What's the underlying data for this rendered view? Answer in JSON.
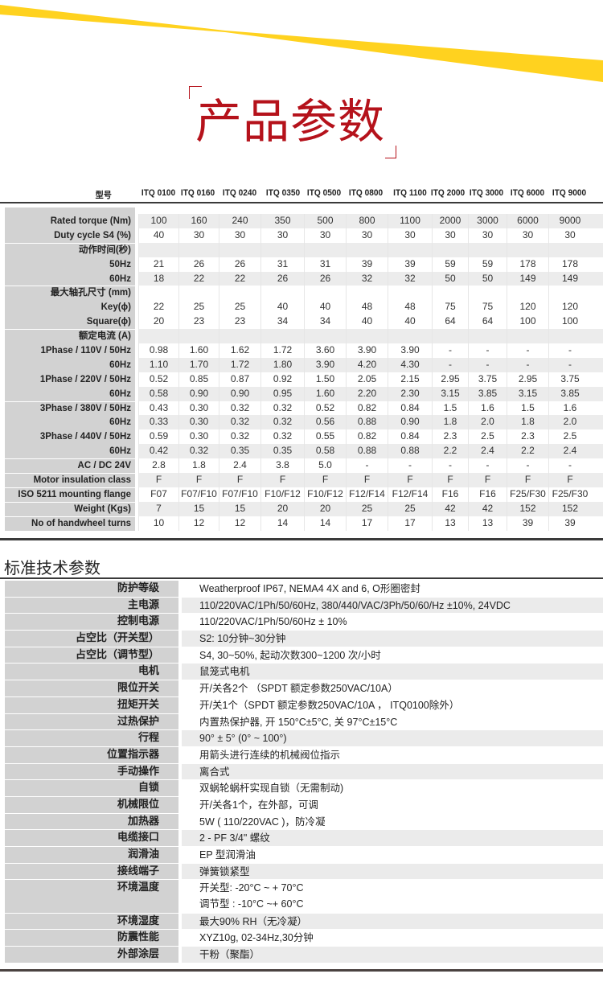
{
  "header": {
    "title": "产品参数",
    "accent": "#b5121b",
    "stripe": "#ffd21f"
  },
  "table1": {
    "model_label": "型号",
    "models": [
      "ITQ 0100",
      "ITQ 0160",
      "ITQ 0240",
      "ITQ 0350",
      "ITQ 0500",
      "ITQ 0800",
      "ITQ 1100",
      "ITQ 2000",
      "ITQ 3000",
      "ITQ 6000",
      "ITQ 9000"
    ],
    "rows": [
      {
        "label": "Rated torque (Nm)",
        "values": [
          "100",
          "160",
          "240",
          "350",
          "500",
          "800",
          "1100",
          "2000",
          "3000",
          "6000",
          "9000"
        ]
      },
      {
        "label": "Duty cycle S4 (%)",
        "values": [
          "40",
          "30",
          "30",
          "30",
          "30",
          "30",
          "30",
          "30",
          "30",
          "30",
          "30"
        ]
      },
      {
        "label": "动作时间(秒)",
        "values": []
      },
      {
        "label": "50Hz",
        "values": [
          "21",
          "26",
          "26",
          "31",
          "31",
          "39",
          "39",
          "59",
          "59",
          "178",
          "178"
        ]
      },
      {
        "label": "60Hz",
        "values": [
          "18",
          "22",
          "22",
          "26",
          "26",
          "32",
          "32",
          "50",
          "50",
          "149",
          "149"
        ]
      },
      {
        "label": "最大轴孔尺寸 (mm)",
        "values": []
      },
      {
        "label": "Key(ϕ)",
        "values": [
          "22",
          "25",
          "25",
          "40",
          "40",
          "48",
          "48",
          "75",
          "75",
          "120",
          "120"
        ]
      },
      {
        "label": "Square(ϕ)",
        "values": [
          "20",
          "23",
          "23",
          "34",
          "34",
          "40",
          "40",
          "64",
          "64",
          "100",
          "100"
        ]
      },
      {
        "label": "额定电流 (A)",
        "values": []
      },
      {
        "label": "1Phase / 110V / 50Hz",
        "values": [
          "0.98",
          "1.60",
          "1.62",
          "1.72",
          "3.60",
          "3.90",
          "3.90",
          "-",
          "-",
          "-",
          "-"
        ]
      },
      {
        "label": "60Hz",
        "values": [
          "1.10",
          "1.70",
          "1.72",
          "1.80",
          "3.90",
          "4.20",
          "4.30",
          "-",
          "-",
          "-",
          "-"
        ]
      },
      {
        "label": "1Phase / 220V / 50Hz",
        "values": [
          "0.52",
          "0.85",
          "0.87",
          "0.92",
          "1.50",
          "2.05",
          "2.15",
          "2.95",
          "3.75",
          "2.95",
          "3.75"
        ]
      },
      {
        "label": "60Hz",
        "values": [
          "0.58",
          "0.90",
          "0.90",
          "0.95",
          "1.60",
          "2.20",
          "2.30",
          "3.15",
          "3.85",
          "3.15",
          "3.85"
        ]
      },
      {
        "label": "3Phase / 380V / 50Hz",
        "values": [
          "0.43",
          "0.30",
          "0.32",
          "0.32",
          "0.52",
          "0.82",
          "0.84",
          "1.5",
          "1.6",
          "1.5",
          "1.6"
        ]
      },
      {
        "label": "60Hz",
        "values": [
          "0.33",
          "0.30",
          "0.32",
          "0.32",
          "0.56",
          "0.88",
          "0.90",
          "1.8",
          "2.0",
          "1.8",
          "2.0"
        ]
      },
      {
        "label": "3Phase / 440V / 50Hz",
        "values": [
          "0.59",
          "0.30",
          "0.32",
          "0.32",
          "0.55",
          "0.82",
          "0.84",
          "2.3",
          "2.5",
          "2.3",
          "2.5"
        ]
      },
      {
        "label": "60Hz",
        "values": [
          "0.42",
          "0.32",
          "0.35",
          "0.35",
          "0.58",
          "0.88",
          "0.88",
          "2.2",
          "2.4",
          "2.2",
          "2.4"
        ]
      },
      {
        "label": "AC / DC 24V",
        "values": [
          "2.8",
          "1.8",
          "2.4",
          "3.8",
          "5.0",
          "-",
          "-",
          "-",
          "-",
          "-",
          "-"
        ]
      },
      {
        "label": "Motor insulation class",
        "values": [
          "F",
          "F",
          "F",
          "F",
          "F",
          "F",
          "F",
          "F",
          "F",
          "F",
          "F"
        ]
      },
      {
        "label": "ISO 5211 mounting flange",
        "values": [
          "F07",
          "F07/F10",
          "F07/F10",
          "F10/F12",
          "F10/F12",
          "F12/F14",
          "F12/F14",
          "F16",
          "F16",
          "F25/F30",
          "F25/F30"
        ]
      },
      {
        "label": "Weight (Kgs)",
        "values": [
          "7",
          "15",
          "15",
          "20",
          "20",
          "25",
          "25",
          "42",
          "42",
          "152",
          "152"
        ]
      },
      {
        "label": "No of handwheel turns",
        "values": [
          "10",
          "12",
          "12",
          "14",
          "14",
          "17",
          "17",
          "13",
          "13",
          "39",
          "39"
        ]
      }
    ]
  },
  "table2": {
    "title": "标准技术参数",
    "rows": [
      {
        "label": "防护等级",
        "value": "Weatherproof IP67, NEMA4 4X and 6, O形圈密封"
      },
      {
        "label": "主电源",
        "value": "110/220VAC/1Ph/50/60Hz, 380/440/VAC/3Ph/50/60/Hz ±10%, 24VDC"
      },
      {
        "label": "控制电源",
        "value": "110/220VAC/1Ph/50/60Hz ± 10%"
      },
      {
        "label": "占空比（开关型）",
        "value": "S2: 10分钟~30分钟"
      },
      {
        "label": "占空比（调节型）",
        "value": "S4, 30~50%, 起动次数300~1200 次/小时"
      },
      {
        "label": "电机",
        "value": "鼠笼式电机"
      },
      {
        "label": "限位开关",
        "value": "开/关各2个 （SPDT 额定参数250VAC/10A）"
      },
      {
        "label": "扭矩开关",
        "value": "开/关1个（SPDT 额定参数250VAC/10A ， ITQ0100除外）"
      },
      {
        "label": "过热保护",
        "value": "内置热保护器, 开 150°C±5°C, 关 97°C±15°C"
      },
      {
        "label": "行程",
        "value": "90° ± 5° (0° ~ 100°)"
      },
      {
        "label": "位置指示器",
        "value": "用箭头进行连续的机械阀位指示"
      },
      {
        "label": "手动操作",
        "value": "离合式"
      },
      {
        "label": "自锁",
        "value": "双蜗轮蜗杆实现自锁（无需制动)"
      },
      {
        "label": "机械限位",
        "value": "开/关各1个，在外部，可调"
      },
      {
        "label": "加热器",
        "value": "5W ( 110/220VAC )，防冷凝"
      },
      {
        "label": "电缆接口",
        "value": "2 - PF 3/4\" 螺纹"
      },
      {
        "label": "润滑油",
        "value": "EP 型润滑油"
      },
      {
        "label": "接线端子",
        "value": "弹簧锁紧型"
      },
      {
        "label": "环境温度",
        "value": "开关型: -20°C ~ + 70°C",
        "value2": "调节型 : -10°C ~+ 60°C"
      },
      {
        "label": "环境湿度",
        "value": "最大90% RH（无冷凝）"
      },
      {
        "label": "防震性能",
        "value": "XYZ10g, 02-34Hz,30分钟"
      },
      {
        "label": "外部涂层",
        "value": "干粉（聚酯）"
      }
    ]
  }
}
